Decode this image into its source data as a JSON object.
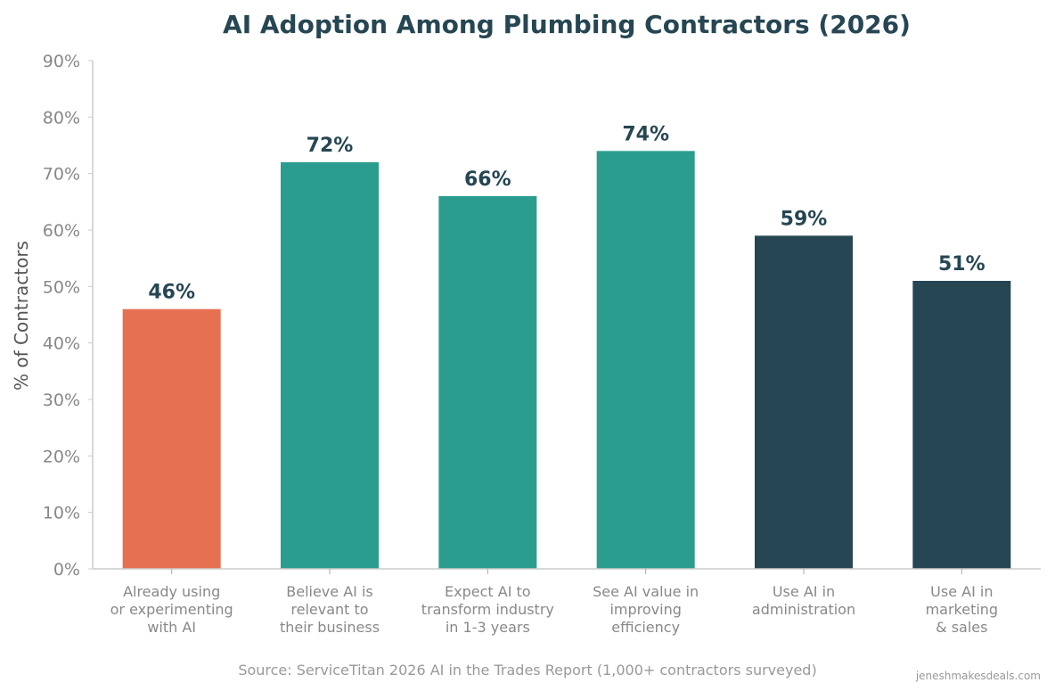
{
  "chart_data": {
    "type": "bar",
    "title": "AI Adoption Among Plumbing Contractors (2026)",
    "xlabel": "",
    "ylabel": "% of Contractors",
    "ylim": [
      0,
      90
    ],
    "yticks": [
      "0%",
      "10%",
      "20%",
      "30%",
      "40%",
      "50%",
      "60%",
      "70%",
      "80%",
      "90%"
    ],
    "categories": [
      [
        "Already using",
        "or experimenting",
        "with AI"
      ],
      [
        "Believe AI is",
        "relevant to",
        "their business"
      ],
      [
        "Expect AI to",
        "transform industry",
        "in 1-3 years"
      ],
      [
        "See AI value in",
        "improving",
        "efficiency"
      ],
      [
        "Use AI in",
        "administration"
      ],
      [
        "Use AI in",
        "marketing",
        "& sales"
      ]
    ],
    "values": [
      46,
      72,
      66,
      74,
      59,
      51
    ],
    "data_labels": [
      "46%",
      "72%",
      "66%",
      "74%",
      "59%",
      "51%"
    ],
    "colors": [
      "#E67152",
      "#2A9D8F",
      "#2A9D8F",
      "#2A9D8F",
      "#264653",
      "#264653"
    ],
    "grid": false,
    "source": "Source: ServiceTitan 2026 AI in the Trades Report (1,000+ contractors surveyed)",
    "watermark": "jeneshmakesdeals.com"
  }
}
